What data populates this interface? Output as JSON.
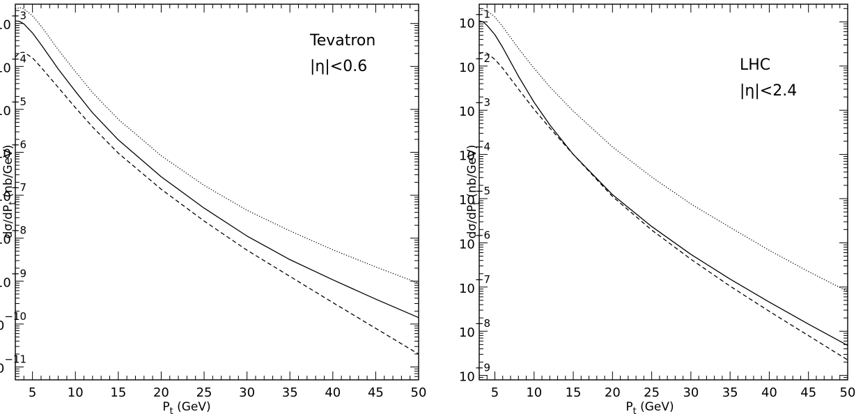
{
  "chart_data": [
    {
      "type": "line",
      "panel": "left",
      "annotation": [
        "Tevatron",
        "|η|<0.6"
      ],
      "xlabel": "P_t (GeV)",
      "ylabel": "dσ/dP_t (nb/GeV)",
      "xlim": [
        3,
        50
      ],
      "ylim_log10": [
        -11.3,
        -2.55
      ],
      "yscale": "log",
      "x_ticks": [
        5,
        10,
        15,
        20,
        25,
        30,
        35,
        40,
        45,
        50
      ],
      "y_tick_exponents": [
        -3,
        -4,
        -5,
        -6,
        -7,
        -8,
        -9,
        -10,
        -11
      ],
      "series": [
        {
          "style": "dotted",
          "x": [
            3,
            3.5,
            4,
            5,
            6,
            8,
            10,
            12,
            15,
            20,
            25,
            30,
            35,
            40,
            45,
            50
          ],
          "log10y": [
            -2.66,
            -2.63,
            -2.66,
            -2.82,
            -3.06,
            -3.61,
            -4.12,
            -4.61,
            -5.23,
            -6.08,
            -6.77,
            -7.35,
            -7.83,
            -8.27,
            -8.67,
            -9.05
          ]
        },
        {
          "style": "solid",
          "x": [
            3,
            3.5,
            4,
            5,
            6,
            8,
            10,
            12,
            15,
            20,
            25,
            30,
            35,
            40,
            45,
            50
          ],
          "log10y": [
            -2.94,
            -2.95,
            -3.01,
            -3.22,
            -3.49,
            -4.06,
            -4.58,
            -5.08,
            -5.71,
            -6.57,
            -7.3,
            -7.95,
            -8.5,
            -8.97,
            -9.42,
            -9.85
          ]
        },
        {
          "style": "dashed",
          "x": [
            3,
            3.5,
            4,
            5,
            6,
            8,
            10,
            12,
            15,
            20,
            25,
            30,
            35,
            40,
            45,
            50
          ],
          "log10y": [
            -3.78,
            -3.68,
            -3.67,
            -3.8,
            -4.02,
            -4.49,
            -4.96,
            -5.41,
            -6.02,
            -6.86,
            -7.6,
            -8.28,
            -8.89,
            -9.5,
            -10.1,
            -10.7
          ]
        }
      ]
    },
    {
      "type": "line",
      "panel": "right",
      "annotation": [
        "LHC",
        "|η|<2.4"
      ],
      "xlabel": "P_t (GeV)",
      "ylabel": "dσ/dP_t (nb/GeV)",
      "xlim": [
        3,
        50
      ],
      "ylim_log10": [
        -9.1,
        -0.6
      ],
      "yscale": "log",
      "x_ticks": [
        5,
        10,
        15,
        20,
        25,
        30,
        35,
        40,
        45,
        50
      ],
      "y_tick_exponents": [
        -1,
        -2,
        -3,
        -4,
        -5,
        -6,
        -7,
        -8,
        -9
      ],
      "series": [
        {
          "style": "dotted",
          "x": [
            3,
            3.5,
            4,
            5,
            6,
            8,
            10,
            12,
            15,
            20,
            25,
            30,
            35,
            40,
            45,
            50
          ],
          "log10y": [
            -0.77,
            -0.73,
            -0.75,
            -0.89,
            -1.11,
            -1.6,
            -2.05,
            -2.47,
            -3.02,
            -3.83,
            -4.51,
            -5.12,
            -5.65,
            -6.17,
            -6.65,
            -7.1
          ]
        },
        {
          "style": "solid",
          "x": [
            3,
            3.5,
            4,
            5,
            6,
            8,
            10,
            12,
            15,
            20,
            25,
            30,
            35,
            40,
            45,
            50
          ],
          "log10y": [
            -0.98,
            -1.0,
            -1.08,
            -1.29,
            -1.58,
            -2.23,
            -2.82,
            -3.33,
            -4.0,
            -4.91,
            -5.63,
            -6.26,
            -6.82,
            -7.34,
            -7.84,
            -8.32
          ]
        },
        {
          "style": "dashed",
          "x": [
            3,
            3.5,
            4,
            5,
            6,
            8,
            10,
            12,
            15,
            20,
            25,
            30,
            35,
            40,
            45,
            50
          ],
          "log10y": [
            -1.72,
            -1.69,
            -1.71,
            -1.85,
            -2.05,
            -2.52,
            -2.98,
            -3.4,
            -4.0,
            -4.95,
            -5.71,
            -6.37,
            -6.98,
            -7.55,
            -8.1,
            -8.65
          ]
        }
      ]
    }
  ]
}
